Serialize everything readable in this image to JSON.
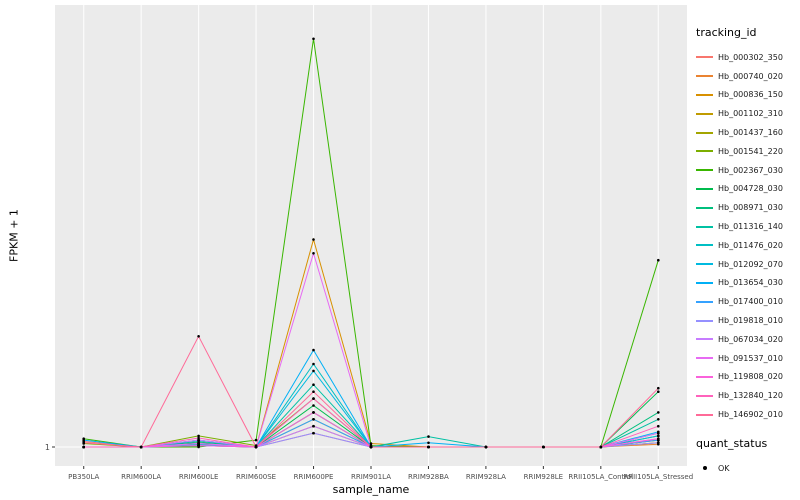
{
  "chart_data": {
    "type": "line",
    "title": "",
    "xlabel": "sample_name",
    "ylabel": "FPKM + 1",
    "ylim": [
      1,
      62
    ],
    "grid": true,
    "panel_bg": "#EBEBEB",
    "grid_color": "#FFFFFF",
    "point_color": "#000000",
    "axis_text_color": "#4D4D4D",
    "y_ticks": [
      {
        "value": 1,
        "label": "1"
      }
    ],
    "categories": [
      "PB350LA",
      "RRIM600LA",
      "RRIM600LE",
      "RRIM600SE",
      "RRIM600PE",
      "RRIM901LA",
      "RRIM928BA",
      "RRIM928LA",
      "RRIM928LE",
      "RRII105LA_Control",
      "RRII105LA_Stressed"
    ],
    "series": [
      {
        "name": "Hb_000302_350",
        "color": "#F8766D",
        "values": [
          1.8,
          1,
          1.2,
          1,
          3,
          1,
          1,
          1,
          1,
          1,
          1.6
        ]
      },
      {
        "name": "Hb_000740_020",
        "color": "#EA8331",
        "values": [
          1,
          1,
          1.4,
          1,
          6,
          1,
          1,
          1,
          1,
          1,
          1.4
        ]
      },
      {
        "name": "Hb_000836_150",
        "color": "#D89000",
        "values": [
          1,
          1,
          1.6,
          1,
          31,
          1.5,
          1,
          1,
          1,
          1,
          2
        ]
      },
      {
        "name": "Hb_001102_310",
        "color": "#C09B00",
        "values": [
          1,
          1,
          1.2,
          1,
          4,
          1,
          1,
          1,
          1,
          1,
          1.6
        ]
      },
      {
        "name": "Hb_001437_160",
        "color": "#A3A500",
        "values": [
          1,
          1,
          2,
          1,
          5,
          1,
          1,
          1,
          1,
          1,
          2
        ]
      },
      {
        "name": "Hb_001541_220",
        "color": "#7CAE00",
        "values": [
          1.5,
          1,
          2.6,
          1.2,
          8,
          1,
          1,
          1,
          1,
          1,
          2.6
        ]
      },
      {
        "name": "Hb_002367_030",
        "color": "#39B600",
        "values": [
          2.2,
          1,
          1,
          2,
          60,
          1.2,
          1,
          1,
          1,
          1,
          28
        ]
      },
      {
        "name": "Hb_004728_030",
        "color": "#00BB4E",
        "values": [
          1,
          1,
          1.6,
          1,
          7,
          1,
          1,
          1,
          1,
          1,
          9
        ]
      },
      {
        "name": "Hb_008971_030",
        "color": "#00BF7D",
        "values": [
          1,
          1,
          1.3,
          1,
          6,
          1,
          1,
          1,
          1,
          1,
          6
        ]
      },
      {
        "name": "Hb_011316_140",
        "color": "#00C1A3",
        "values": [
          1,
          1,
          1.8,
          1,
          10,
          1,
          2.5,
          1,
          1,
          1,
          5
        ]
      },
      {
        "name": "Hb_011476_020",
        "color": "#00BFC4",
        "values": [
          1,
          1,
          1.5,
          1,
          13,
          1,
          1,
          1,
          1,
          1,
          3
        ]
      },
      {
        "name": "Hb_012092_070",
        "color": "#00BAE0",
        "values": [
          1,
          1,
          1.3,
          1,
          12,
          1,
          1,
          1,
          1,
          1,
          2.6
        ]
      },
      {
        "name": "Hb_013654_030",
        "color": "#00B0F6",
        "values": [
          2,
          1,
          2,
          1,
          15,
          1,
          1.6,
          1,
          1,
          1,
          3.2
        ]
      },
      {
        "name": "Hb_017400_010",
        "color": "#35A2FF",
        "values": [
          1,
          1,
          1.2,
          1,
          5,
          1,
          1,
          1,
          1,
          1,
          2
        ]
      },
      {
        "name": "Hb_019818_010",
        "color": "#9590FF",
        "values": [
          1,
          1,
          1.5,
          1,
          3,
          1,
          1,
          1,
          1,
          1,
          1.6
        ]
      },
      {
        "name": "Hb_067034_020",
        "color": "#C77CFF",
        "values": [
          1,
          1,
          2,
          1,
          4,
          1,
          1,
          1,
          1,
          1,
          2.2
        ]
      },
      {
        "name": "Hb_091537_010",
        "color": "#E76BF3",
        "values": [
          1,
          1,
          1.5,
          1,
          29,
          1,
          1,
          1,
          1,
          1,
          3
        ]
      },
      {
        "name": "Hb_119808_020",
        "color": "#FA62DB",
        "values": [
          1,
          1,
          1.2,
          1,
          6,
          1,
          1,
          1,
          1,
          1,
          2.2
        ]
      },
      {
        "name": "Hb_132840_120",
        "color": "#FF62BC",
        "values": [
          1,
          1,
          2.3,
          1,
          8,
          1,
          1,
          1,
          1,
          1,
          4
        ]
      },
      {
        "name": "Hb_146902_010",
        "color": "#FF6A98",
        "values": [
          1.6,
          1,
          17,
          1,
          9,
          1,
          1,
          1,
          1,
          1,
          9.5
        ]
      }
    ],
    "legend": {
      "color_title": "tracking_id",
      "shape_title": "quant_status",
      "shape_entries": [
        {
          "label": "OK"
        }
      ],
      "legend_position": "right"
    }
  }
}
